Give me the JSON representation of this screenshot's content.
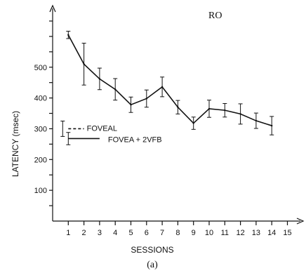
{
  "chart_data": {
    "type": "line",
    "subject": "RO",
    "panel_label": "(a)",
    "xlabel": "SESSIONS",
    "ylabel": "LATENCY (msec)",
    "xlim": [
      0,
      16
    ],
    "ylim": [
      0,
      700
    ],
    "x_ticks": [
      1,
      2,
      3,
      4,
      5,
      6,
      7,
      8,
      9,
      10,
      11,
      12,
      13,
      14,
      15
    ],
    "y_ticks": [
      100,
      200,
      300,
      400,
      500
    ],
    "series": [
      {
        "x": [
          1,
          2,
          3,
          4,
          5,
          6,
          7,
          8,
          9,
          10,
          11,
          12,
          13,
          14
        ],
        "y": [
          605,
          510,
          462,
          428,
          378,
          398,
          436,
          370,
          318,
          365,
          360,
          348,
          326,
          310
        ],
        "err": [
          12,
          68,
          35,
          35,
          25,
          28,
          32,
          22,
          20,
          28,
          22,
          33,
          25,
          30
        ]
      }
    ],
    "reference_lines": [
      {
        "label": "FOVEAL",
        "style": "dashed",
        "y": 300,
        "x": [
          1,
          2
        ],
        "err": 25
      },
      {
        "label": "FOVEA + 2VFB",
        "style": "solid",
        "y": 268,
        "x": [
          1,
          3
        ],
        "err": 20
      }
    ]
  }
}
